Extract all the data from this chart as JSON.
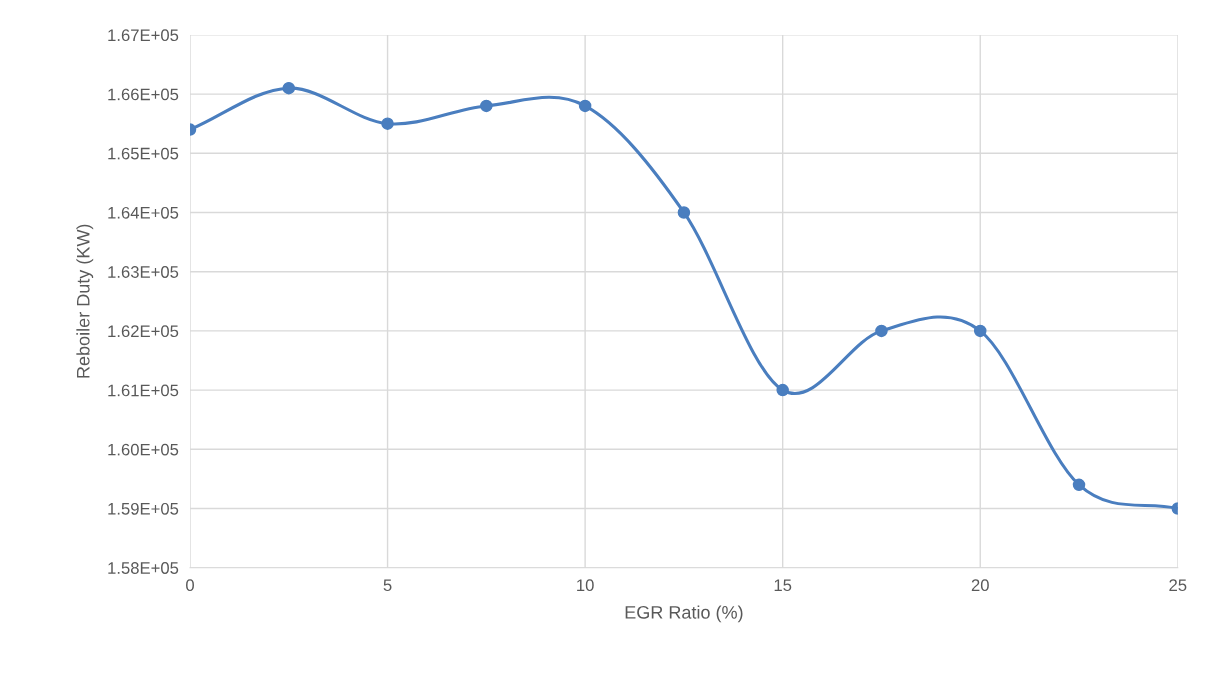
{
  "chart_data": {
    "type": "line",
    "xlabel": "EGR Ratio (%)",
    "ylabel": "Reboiler Duty (KW)",
    "x": [
      0,
      2.5,
      5,
      7.5,
      10,
      12.5,
      15,
      17.5,
      20,
      22.5,
      25
    ],
    "series": [
      {
        "color": "#4a7ebf",
        "values": [
          165400,
          166100,
          165500,
          165800,
          165800,
          164000,
          161000,
          162000,
          162000,
          159400,
          159000
        ]
      }
    ],
    "xlim": [
      0,
      25
    ],
    "xticks": [
      0,
      5,
      10,
      15,
      20,
      25
    ],
    "ylim": [
      158000,
      167000
    ],
    "yticks": [
      {
        "value": 158000,
        "label": "1.58E+05"
      },
      {
        "value": 159000,
        "label": "1.59E+05"
      },
      {
        "value": 160000,
        "label": "1.60E+05"
      },
      {
        "value": 161000,
        "label": "1.61E+05"
      },
      {
        "value": 162000,
        "label": "1.62E+05"
      },
      {
        "value": 163000,
        "label": "1.63E+05"
      },
      {
        "value": 164000,
        "label": "1.64E+05"
      },
      {
        "value": 165000,
        "label": "1.65E+05"
      },
      {
        "value": 166000,
        "label": "1.66E+05"
      },
      {
        "value": 167000,
        "label": "1.67E+05"
      }
    ],
    "grid": true,
    "marker": "circle",
    "line_style": "solid"
  }
}
